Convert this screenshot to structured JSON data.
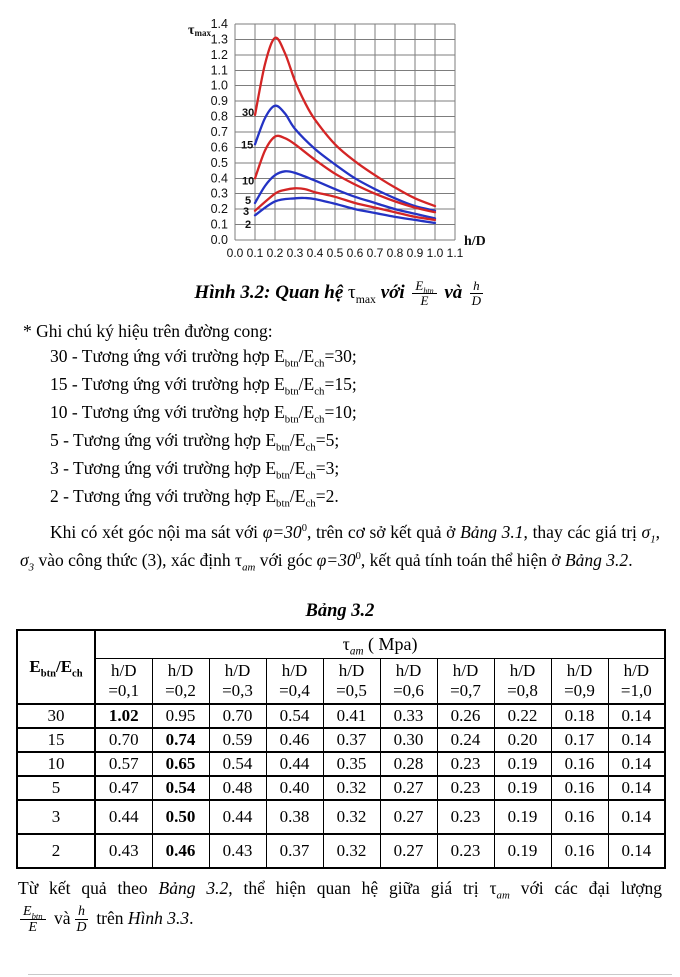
{
  "chart_data": {
    "type": "line",
    "xlabel": "h/D",
    "ylabel": "τ",
    "ylabel_sub": "max",
    "xlim": [
      0,
      1.1
    ],
    "ylim": [
      0,
      1.4
    ],
    "grid": true,
    "grid_color": "#7d7d7d",
    "x_ticks": [
      "0.0",
      "0.1",
      "0.2",
      "0.3",
      "0.4",
      "0.5",
      "0.6",
      "0.7",
      "0.8",
      "0.9",
      "1.0",
      "1.1"
    ],
    "y_ticks": [
      "0.0",
      "0.1",
      "0.2",
      "0.3",
      "0.4",
      "0.5",
      "0.6",
      "0.7",
      "0.8",
      "0.9",
      "1.0",
      "1.1",
      "1.2",
      "1.3",
      "1.4"
    ],
    "series": [
      {
        "name": "30",
        "color": "#d42525",
        "points": [
          [
            0.1,
            0.81
          ],
          [
            0.15,
            1.14
          ],
          [
            0.2,
            1.31
          ],
          [
            0.25,
            1.21
          ],
          [
            0.3,
            1.03
          ],
          [
            0.35,
            0.89
          ],
          [
            0.4,
            0.78
          ],
          [
            0.5,
            0.62
          ],
          [
            0.6,
            0.51
          ],
          [
            0.7,
            0.42
          ],
          [
            0.8,
            0.34
          ],
          [
            0.9,
            0.27
          ],
          [
            1.0,
            0.22
          ]
        ]
      },
      {
        "name": "15",
        "color": "#2433c4",
        "points": [
          [
            0.1,
            0.62
          ],
          [
            0.15,
            0.79
          ],
          [
            0.2,
            0.87
          ],
          [
            0.25,
            0.82
          ],
          [
            0.3,
            0.72
          ],
          [
            0.4,
            0.59
          ],
          [
            0.5,
            0.49
          ],
          [
            0.6,
            0.4
          ],
          [
            0.7,
            0.33
          ],
          [
            0.8,
            0.27
          ],
          [
            0.9,
            0.22
          ],
          [
            1.0,
            0.19
          ]
        ]
      },
      {
        "name": "10",
        "color": "#d42525",
        "points": [
          [
            0.1,
            0.4
          ],
          [
            0.15,
            0.58
          ],
          [
            0.2,
            0.67
          ],
          [
            0.25,
            0.66
          ],
          [
            0.3,
            0.62
          ],
          [
            0.4,
            0.52
          ],
          [
            0.5,
            0.43
          ],
          [
            0.6,
            0.36
          ],
          [
            0.7,
            0.3
          ],
          [
            0.8,
            0.25
          ],
          [
            0.9,
            0.21
          ],
          [
            1.0,
            0.18
          ]
        ]
      },
      {
        "name": "5",
        "color": "#2433c4",
        "points": [
          [
            0.1,
            0.24
          ],
          [
            0.15,
            0.35
          ],
          [
            0.2,
            0.42
          ],
          [
            0.25,
            0.445
          ],
          [
            0.3,
            0.435
          ],
          [
            0.4,
            0.385
          ],
          [
            0.5,
            0.33
          ],
          [
            0.6,
            0.28
          ],
          [
            0.7,
            0.24
          ],
          [
            0.8,
            0.2
          ],
          [
            0.9,
            0.17
          ],
          [
            1.0,
            0.14
          ]
        ]
      },
      {
        "name": "3",
        "color": "#d42525",
        "points": [
          [
            0.1,
            0.19
          ],
          [
            0.2,
            0.3
          ],
          [
            0.25,
            0.325
          ],
          [
            0.3,
            0.335
          ],
          [
            0.35,
            0.33
          ],
          [
            0.4,
            0.31
          ],
          [
            0.5,
            0.28
          ],
          [
            0.6,
            0.24
          ],
          [
            0.7,
            0.21
          ],
          [
            0.8,
            0.18
          ],
          [
            0.9,
            0.15
          ],
          [
            1.0,
            0.13
          ]
        ]
      },
      {
        "name": "2",
        "color": "#2433c4",
        "points": [
          [
            0.1,
            0.16
          ],
          [
            0.2,
            0.25
          ],
          [
            0.3,
            0.27
          ],
          [
            0.35,
            0.272
          ],
          [
            0.4,
            0.265
          ],
          [
            0.5,
            0.235
          ],
          [
            0.6,
            0.2
          ],
          [
            0.7,
            0.175
          ],
          [
            0.8,
            0.15
          ],
          [
            0.9,
            0.13
          ],
          [
            1.0,
            0.11
          ]
        ]
      }
    ],
    "curve_labels": [
      {
        "text": "30",
        "x": 0.035,
        "y": 0.83
      },
      {
        "text": "15",
        "x": 0.03,
        "y": 0.62
      },
      {
        "text": "10",
        "x": 0.035,
        "y": 0.385
      },
      {
        "text": "5",
        "x": 0.05,
        "y": 0.26
      },
      {
        "text": "3",
        "x": 0.04,
        "y": 0.188
      },
      {
        "text": "2",
        "x": 0.05,
        "y": 0.105
      }
    ]
  },
  "caption": {
    "prefix": "Hình 3.2: Quan hệ ",
    "tau": "τ",
    "tau_sub": "max",
    "mid1": " với ",
    "frac1": {
      "num": "E",
      "num_sub": "btn",
      "den": "E"
    },
    "mid2": " và ",
    "frac2": {
      "num": "h",
      "den": "D"
    }
  },
  "notes": {
    "heading": "* Ghi chú ký hiệu trên đường cong:",
    "sub_btn": "btn",
    "e_mid": "/E",
    "sub_ch": "ch",
    "items": [
      {
        "lead": "30 - Tương ứng với trường hợp E",
        "tail": "=30;"
      },
      {
        "lead": "15 - Tương ứng với trường hợp E",
        "tail": "=15;"
      },
      {
        "lead": "10 - Tương ứng với trường hợp E",
        "tail": "=10;"
      },
      {
        "lead": "5 - Tương ứng với trường hợp E",
        "tail": "=5;"
      },
      {
        "lead": "3 - Tương ứng với trường hợp E",
        "tail": "=3;"
      },
      {
        "lead": "2 - Tương ứng với trường hợp E",
        "tail": "=2."
      }
    ]
  },
  "para1": {
    "t1": "Khi có xét góc nội ma sát với ",
    "phi": "φ=30",
    "sup": "0",
    "t2": ", trên cơ sở kết quả ở ",
    "ref1": "Bảng 3.1",
    "t3": ", thay các giá trị ",
    "sigma": "σ",
    "s1": "1",
    "comma": ", ",
    "s3": "3",
    "t5": " vào công thức (3), xác định ",
    "tau": "τ",
    "tau_sub": "am",
    "t6": " với góc ",
    "t7": ", kết quả tính toán thể hiện ở ",
    "ref2": "Bảng 3.2",
    "t8": "."
  },
  "table": {
    "title": "Bảng 3.2",
    "corner": {
      "main1": "E",
      "sub1": "btn",
      "mid": "/E",
      "sub2": "ch"
    },
    "span_header": {
      "tau": "τ",
      "tau_sub": "am",
      "unit": " ( Mpa)"
    },
    "hd": "h/D",
    "col_headers": [
      "=0,1",
      "=0,2",
      "=0,3",
      "=0,4",
      "=0,5",
      "=0,6",
      "=0,7",
      "=0,8",
      "=0,9",
      "=1,0"
    ],
    "rows": [
      {
        "label": "30",
        "values": [
          "1.02",
          "0.95",
          "0.70",
          "0.54",
          "0.41",
          "0.33",
          "0.26",
          "0.22",
          "0.18",
          "0.14"
        ],
        "bold_index": 0,
        "tall": false
      },
      {
        "label": "15",
        "values": [
          "0.70",
          "0.74",
          "0.59",
          "0.46",
          "0.37",
          "0.30",
          "0.24",
          "0.20",
          "0.17",
          "0.14"
        ],
        "bold_index": 1,
        "tall": false
      },
      {
        "label": "10",
        "values": [
          "0.57",
          "0.65",
          "0.54",
          "0.44",
          "0.35",
          "0.28",
          "0.23",
          "0.19",
          "0.16",
          "0.14"
        ],
        "bold_index": 1,
        "tall": false
      },
      {
        "label": "5",
        "values": [
          "0.47",
          "0.54",
          "0.48",
          "0.40",
          "0.32",
          "0.27",
          "0.23",
          "0.19",
          "0.16",
          "0.14"
        ],
        "bold_index": 1,
        "tall": false
      },
      {
        "label": "3",
        "values": [
          "0.44",
          "0.50",
          "0.44",
          "0.38",
          "0.32",
          "0.27",
          "0.23",
          "0.19",
          "0.16",
          "0.14"
        ],
        "bold_index": 1,
        "tall": true
      },
      {
        "label": "2",
        "values": [
          "0.43",
          "0.46",
          "0.43",
          "0.37",
          "0.32",
          "0.27",
          "0.23",
          "0.19",
          "0.16",
          "0.14"
        ],
        "bold_index": 1,
        "tall": true
      }
    ]
  },
  "para2": {
    "t1": "Từ kết quả theo ",
    "ref1": "Bảng 3.2",
    "t2": ", thể hiện quan hệ giữa giá trị ",
    "tau": "τ",
    "tau_sub": "am",
    "t3": " với các đại lượng",
    "frac1": {
      "num": "E",
      "num_sub": "btn",
      "den": "E"
    },
    "t4": " và ",
    "frac2": {
      "num": "h",
      "den": "D"
    },
    "t5": " trên ",
    "ref2": "Hình 3.3",
    "t6": "."
  }
}
